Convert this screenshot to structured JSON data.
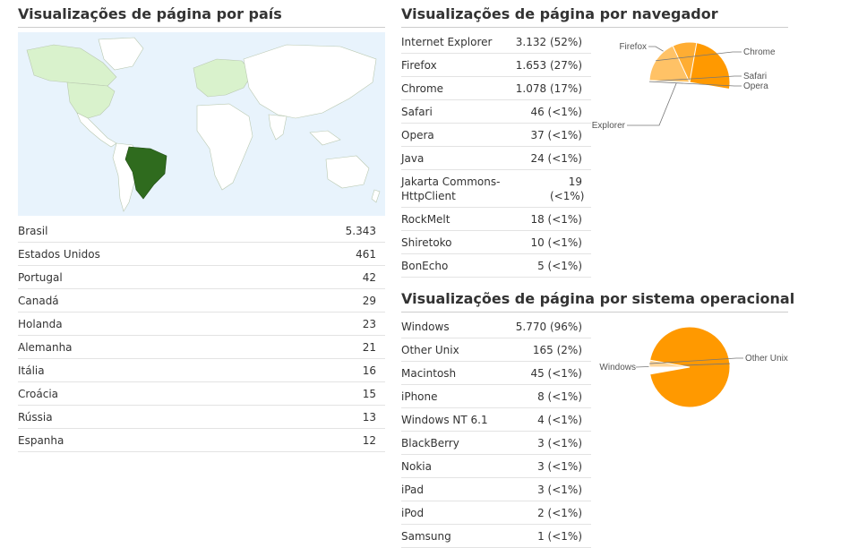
{
  "countries": {
    "title": "Visualizações de página por país",
    "map_colors": {
      "water": "#e8f3fc",
      "land": "#ffffff",
      "low": "#d9f2cc",
      "highlight": "#2f6b1e",
      "border": "#b9c8b0"
    },
    "rows": [
      {
        "name": "Brasil",
        "value": "5.343"
      },
      {
        "name": "Estados Unidos",
        "value": "461"
      },
      {
        "name": "Portugal",
        "value": "42"
      },
      {
        "name": "Canadá",
        "value": "29"
      },
      {
        "name": "Holanda",
        "value": "23"
      },
      {
        "name": "Alemanha",
        "value": "21"
      },
      {
        "name": "Itália",
        "value": "16"
      },
      {
        "name": "Croácia",
        "value": "15"
      },
      {
        "name": "Rússia",
        "value": "13"
      },
      {
        "name": "Espanha",
        "value": "12"
      }
    ]
  },
  "browsers": {
    "title": "Visualizações de página por navegador",
    "rows": [
      {
        "name": "Internet Explorer",
        "value": "3.132 (52%)"
      },
      {
        "name": "Firefox",
        "value": "1.653 (27%)"
      },
      {
        "name": "Chrome",
        "value": "1.078 (17%)"
      },
      {
        "name": "Safari",
        "value": "46 (<1%)"
      },
      {
        "name": "Opera",
        "value": "37 (<1%)"
      },
      {
        "name": "Java",
        "value": "24 (<1%)"
      },
      {
        "name": "Jakarta Commons-HttpClient",
        "value": "19 (<1%)"
      },
      {
        "name": "RockMelt",
        "value": "18 (<1%)"
      },
      {
        "name": "Shiretoko",
        "value": "10 (<1%)"
      },
      {
        "name": "BonEcho",
        "value": "5 (<1%)"
      }
    ]
  },
  "os": {
    "title": "Visualizações de página por sistema operacional",
    "rows": [
      {
        "name": "Windows",
        "value": "5.770 (96%)"
      },
      {
        "name": "Other Unix",
        "value": "165 (2%)"
      },
      {
        "name": "Macintosh",
        "value": "45 (<1%)"
      },
      {
        "name": "iPhone",
        "value": "8 (<1%)"
      },
      {
        "name": "Windows NT 6.1",
        "value": "4 (<1%)"
      },
      {
        "name": "BlackBerry",
        "value": "3 (<1%)"
      },
      {
        "name": "Nokia",
        "value": "3 (<1%)"
      },
      {
        "name": "iPad",
        "value": "3 (<1%)"
      },
      {
        "name": "iPod",
        "value": "2 (<1%)"
      },
      {
        "name": "Samsung",
        "value": "1 (<1%)"
      }
    ]
  },
  "chart_data": [
    {
      "type": "pie",
      "slices": [
        {
          "label": "Internet Explorer",
          "value": 3132,
          "color": "#ff9900",
          "display": "et Explorer"
        },
        {
          "label": "Firefox",
          "value": 1653,
          "color": "#ffad33",
          "display": "Firefox"
        },
        {
          "label": "Chrome",
          "value": 1078,
          "color": "#ffc266",
          "display": "Chrome"
        },
        {
          "label": "Safari",
          "value": 46,
          "color": "#ffd699",
          "display": "Safari"
        },
        {
          "label": "Opera",
          "value": 37,
          "color": "#ffe6bf",
          "display": "Opera"
        }
      ]
    },
    {
      "type": "pie",
      "slices": [
        {
          "label": "Windows",
          "value": 5770,
          "color": "#ff9900",
          "display": "Windows"
        },
        {
          "label": "Other Unix",
          "value": 165,
          "color": "#ffd699",
          "display": "Other Unix"
        }
      ]
    }
  ]
}
